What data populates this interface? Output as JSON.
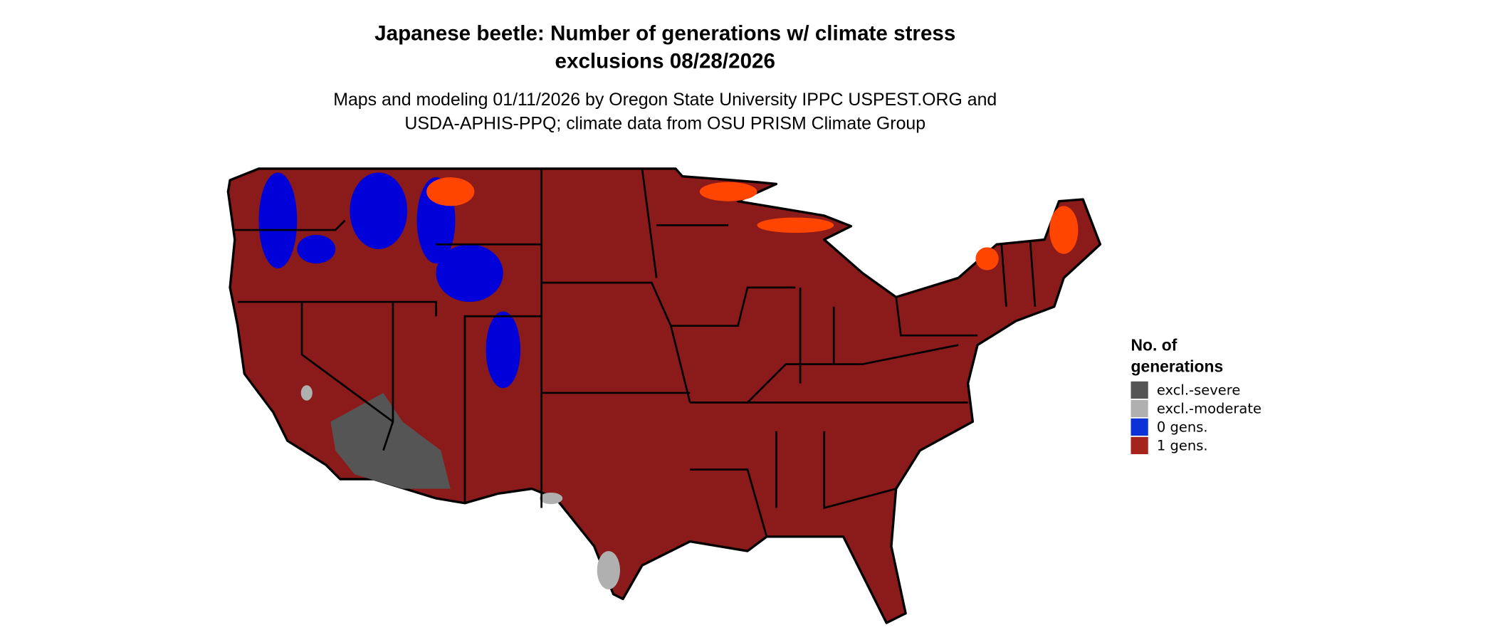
{
  "title": [
    "Japanese beetle: Number of generations w/ climate stress",
    "exclusions 08/28/2026"
  ],
  "subtitle": [
    "Maps and modeling 01/11/2026 by Oregon State University IPPC USPEST.ORG and",
    "USDA-APHIS-PPQ; climate data from OSU PRISM Climate Group"
  ],
  "legend": {
    "title": [
      "No. of",
      "generations"
    ],
    "items": [
      {
        "label": "excl.-severe",
        "color": "#555555"
      },
      {
        "label": "excl.-moderate",
        "color": "#b0b0b0"
      },
      {
        "label": "0 gens.",
        "color": "#0a32d6"
      },
      {
        "label": "1 gens.",
        "color": "#a4231a"
      }
    ]
  }
}
